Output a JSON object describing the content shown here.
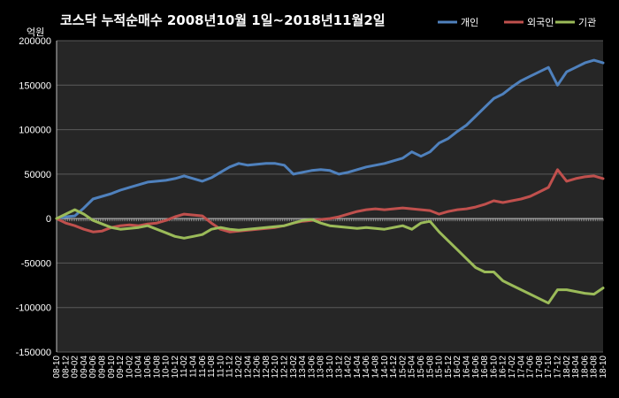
{
  "chart_data": {
    "type": "line",
    "title": "코스닥 누적순매수 2008년10월 1일~2018년11월2일",
    "ylabel": "억원",
    "xlabel": "",
    "ylim": [
      -150000,
      200000
    ],
    "yticks": [
      200000,
      150000,
      100000,
      50000,
      0,
      -50000,
      -100000,
      -150000
    ],
    "ytick_labels": [
      "200000",
      "150000",
      "100000",
      "50000",
      "0",
      "-50000",
      "-100000",
      "-150000"
    ],
    "x_tick_labels": [
      "08-10",
      "08-12",
      "09-02",
      "09-04",
      "09-06",
      "09-08",
      "09-10",
      "09-12",
      "10-02",
      "10-04",
      "10-06",
      "10-08",
      "10-10",
      "10-12",
      "11-02",
      "11-04",
      "11-06",
      "11-08",
      "11-10",
      "11-12",
      "12-02",
      "12-04",
      "12-06",
      "12-08",
      "12-10",
      "12-12",
      "13-02",
      "13-04",
      "13-06",
      "13-08",
      "13-10",
      "13-12",
      "14-02",
      "14-04",
      "14-06",
      "14-08",
      "14-10",
      "14-12",
      "15-02",
      "15-04",
      "15-06",
      "15-08",
      "15-10",
      "15-12",
      "16-02",
      "16-04",
      "16-06",
      "16-08",
      "16-10",
      "16-12",
      "17-02",
      "17-04",
      "17-06",
      "17-08",
      "17-10",
      "17-12",
      "18-02",
      "18-04",
      "18-06",
      "18-08",
      "18-10"
    ],
    "grid": true,
    "legend_position": "top-right",
    "colors": {
      "background": "#000000",
      "plot_background": "#262626",
      "grid": "#5a5a5a",
      "axis": "#bfbfbf",
      "text": "#ffffff"
    },
    "series": [
      {
        "name": "개인",
        "color": "#4f81bd",
        "x": [
          "08-10",
          "08-12",
          "09-02",
          "09-04",
          "09-06",
          "09-08",
          "09-10",
          "09-12",
          "10-02",
          "10-04",
          "10-06",
          "10-08",
          "10-10",
          "10-12",
          "11-02",
          "11-04",
          "11-06",
          "11-08",
          "11-10",
          "11-12",
          "12-02",
          "12-04",
          "12-06",
          "12-08",
          "12-10",
          "12-12",
          "13-02",
          "13-04",
          "13-06",
          "13-08",
          "13-10",
          "13-12",
          "14-02",
          "14-04",
          "14-06",
          "14-08",
          "14-10",
          "14-12",
          "15-02",
          "15-04",
          "15-06",
          "15-08",
          "15-10",
          "15-12",
          "16-02",
          "16-04",
          "16-06",
          "16-08",
          "16-10",
          "16-12",
          "17-02",
          "17-04",
          "17-06",
          "17-08",
          "17-10",
          "17-12",
          "18-02",
          "18-04",
          "18-06",
          "18-08",
          "18-10"
        ],
        "values": [
          0,
          2000,
          3000,
          12000,
          22000,
          25000,
          28000,
          32000,
          35000,
          38000,
          41000,
          42000,
          43000,
          45000,
          48000,
          45000,
          42000,
          46000,
          52000,
          58000,
          62000,
          60000,
          61000,
          62000,
          62000,
          60000,
          50000,
          52000,
          54000,
          55000,
          54000,
          50000,
          52000,
          55000,
          58000,
          60000,
          62000,
          65000,
          68000,
          75000,
          70000,
          75000,
          85000,
          90000,
          98000,
          105000,
          115000,
          125000,
          135000,
          140000,
          148000,
          155000,
          160000,
          165000,
          170000,
          150000,
          165000,
          170000,
          175000,
          178000,
          175000
        ]
      },
      {
        "name": "외국인",
        "color": "#c0504d",
        "x": [
          "08-10",
          "08-12",
          "09-02",
          "09-04",
          "09-06",
          "09-08",
          "09-10",
          "09-12",
          "10-02",
          "10-04",
          "10-06",
          "10-08",
          "10-10",
          "10-12",
          "11-02",
          "11-04",
          "11-06",
          "11-08",
          "11-10",
          "11-12",
          "12-02",
          "12-04",
          "12-06",
          "12-08",
          "12-10",
          "12-12",
          "13-02",
          "13-04",
          "13-06",
          "13-08",
          "13-10",
          "13-12",
          "14-02",
          "14-04",
          "14-06",
          "14-08",
          "14-10",
          "14-12",
          "15-02",
          "15-04",
          "15-06",
          "15-08",
          "15-10",
          "15-12",
          "16-02",
          "16-04",
          "16-06",
          "16-08",
          "16-10",
          "16-12",
          "17-02",
          "17-04",
          "17-06",
          "17-08",
          "17-10",
          "17-12",
          "18-02",
          "18-04",
          "18-06",
          "18-08",
          "18-10"
        ],
        "values": [
          0,
          -5000,
          -8000,
          -12000,
          -15000,
          -14000,
          -10000,
          -8000,
          -7000,
          -8000,
          -6000,
          -5000,
          -2000,
          2000,
          5000,
          4000,
          3000,
          -5000,
          -12000,
          -15000,
          -14000,
          -13000,
          -12000,
          -11000,
          -10000,
          -8000,
          -5000,
          -3000,
          -2000,
          -1000,
          0,
          2000,
          5000,
          8000,
          10000,
          11000,
          10000,
          11000,
          12000,
          11000,
          10000,
          9000,
          5000,
          8000,
          10000,
          11000,
          13000,
          16000,
          20000,
          18000,
          20000,
          22000,
          25000,
          30000,
          35000,
          55000,
          42000,
          45000,
          47000,
          48000,
          45000
        ]
      },
      {
        "name": "기관",
        "color": "#9bbb59",
        "x": [
          "08-10",
          "08-12",
          "09-02",
          "09-04",
          "09-06",
          "09-08",
          "09-10",
          "09-12",
          "10-02",
          "10-04",
          "10-06",
          "10-08",
          "10-10",
          "10-12",
          "11-02",
          "11-04",
          "11-06",
          "11-08",
          "11-10",
          "11-12",
          "12-02",
          "12-04",
          "12-06",
          "12-08",
          "12-10",
          "12-12",
          "13-02",
          "13-04",
          "13-06",
          "13-08",
          "13-10",
          "13-12",
          "14-02",
          "14-04",
          "14-06",
          "14-08",
          "14-10",
          "14-12",
          "15-02",
          "15-04",
          "15-06",
          "15-08",
          "15-10",
          "15-12",
          "16-02",
          "16-04",
          "16-06",
          "16-08",
          "16-10",
          "16-12",
          "17-02",
          "17-04",
          "17-06",
          "17-08",
          "17-10",
          "17-12",
          "18-02",
          "18-04",
          "18-06",
          "18-08",
          "18-10"
        ],
        "values": [
          0,
          5000,
          10000,
          5000,
          -2000,
          -6000,
          -10000,
          -12000,
          -11000,
          -10000,
          -8000,
          -12000,
          -16000,
          -20000,
          -22000,
          -20000,
          -18000,
          -12000,
          -10000,
          -12000,
          -13000,
          -12000,
          -11000,
          -10000,
          -9000,
          -8000,
          -5000,
          -2000,
          -1000,
          -5000,
          -8000,
          -9000,
          -10000,
          -11000,
          -10000,
          -11000,
          -12000,
          -10000,
          -8000,
          -12000,
          -5000,
          -3000,
          -15000,
          -25000,
          -35000,
          -45000,
          -55000,
          -60000,
          -60000,
          -70000,
          -75000,
          -80000,
          -85000,
          -90000,
          -95000,
          -80000,
          -80000,
          -82000,
          -84000,
          -85000,
          -78000
        ]
      }
    ]
  }
}
